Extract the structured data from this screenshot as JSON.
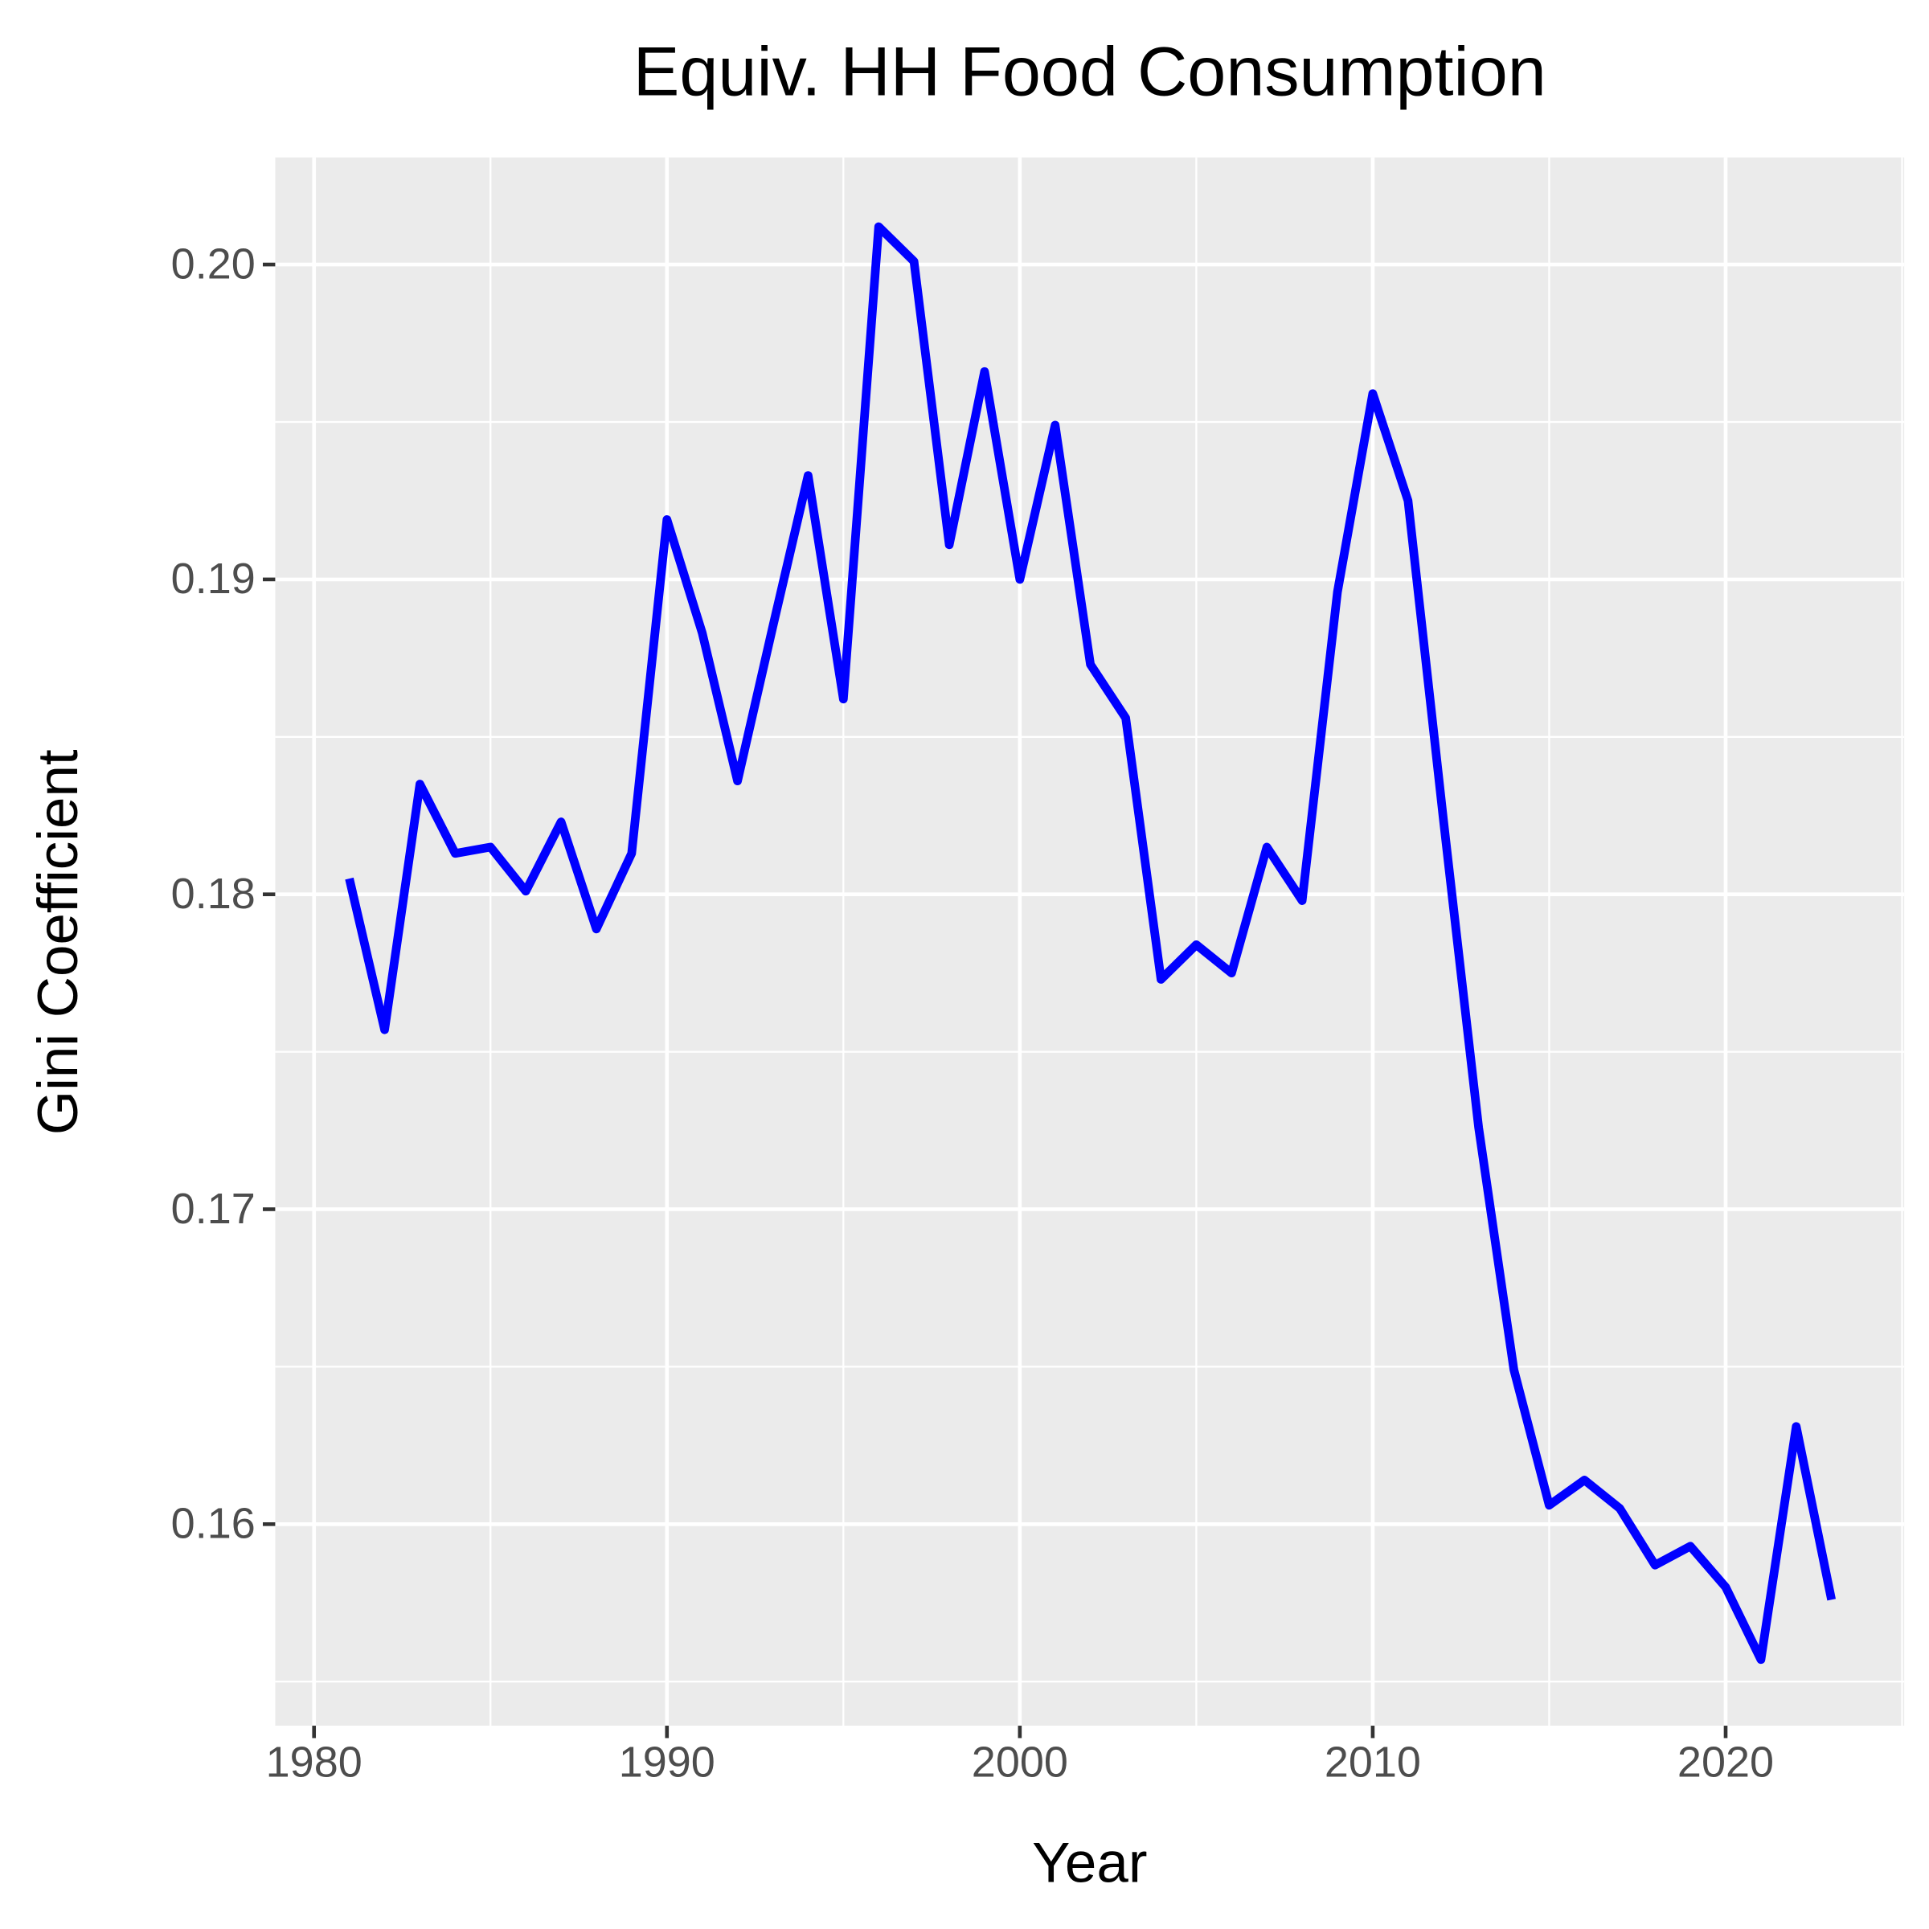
{
  "chart_data": {
    "type": "line",
    "title": "Equiv. HH Food Consumption",
    "x_label": "Year",
    "y_label": "Gini Coefficient",
    "x": [
      1981,
      1982,
      1983,
      1984,
      1985,
      1986,
      1987,
      1988,
      1989,
      1990,
      1991,
      1992,
      1993,
      1994,
      1995,
      1996,
      1997,
      1998,
      1999,
      2000,
      2001,
      2002,
      2003,
      2004,
      2005,
      2006,
      2007,
      2008,
      2009,
      2010,
      2011,
      2012,
      2013,
      2014,
      2015,
      2016,
      2017,
      2018,
      2019,
      2020,
      2021,
      2022,
      2023
    ],
    "series": [
      {
        "name": "Gini Coefficient",
        "color": "#0000ff",
        "values": [
          0.1805,
          0.1757,
          0.1835,
          0.1813,
          0.1815,
          0.1801,
          0.1823,
          0.1789,
          0.1813,
          0.1919,
          0.1883,
          0.1836,
          0.1885,
          0.1933,
          0.1862,
          0.2012,
          0.2001,
          0.1911,
          0.1966,
          0.19,
          0.1949,
          0.1873,
          0.1856,
          0.1773,
          0.1784,
          0.1775,
          0.1815,
          0.1798,
          0.1896,
          0.1959,
          0.1925,
          0.1824,
          0.1726,
          0.1649,
          0.1606,
          0.1614,
          0.1605,
          0.1587,
          0.1593,
          0.158,
          0.1557,
          0.1631,
          0.1576
        ]
      }
    ],
    "xlim": [
      1978.9,
      2025.06
    ],
    "ylim": [
      0.1536,
      0.2034
    ],
    "xticks": [
      1980,
      1990,
      2000,
      2010,
      2020
    ],
    "yticks": [
      {
        "value": 0.16,
        "label": "0.16"
      },
      {
        "value": 0.17,
        "label": "0.17"
      },
      {
        "value": 0.18,
        "label": "0.18"
      },
      {
        "value": 0.19,
        "label": "0.19"
      },
      {
        "value": 0.2,
        "label": "0.20"
      }
    ],
    "grid": true
  }
}
